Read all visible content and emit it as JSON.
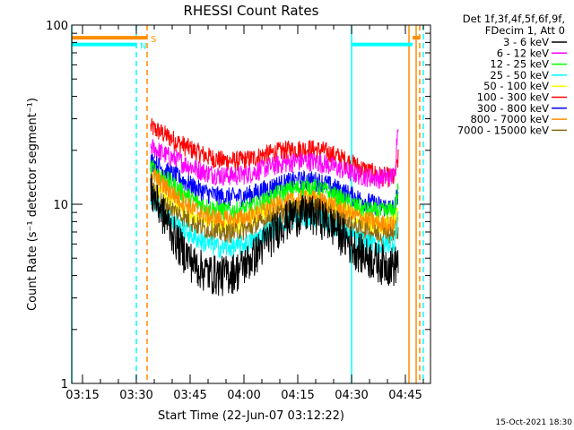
{
  "chart_data": {
    "type": "line",
    "title": "RHESSI Count Rates",
    "xlabel": "Start Time (22-Jun-07 03:12:22)",
    "ylabel": "Count Rate (s⁻¹ detector segment⁻¹)",
    "yscale": "log",
    "ylim": [
      1,
      100
    ],
    "xlim_minutes": [
      "03:12",
      "04:52"
    ],
    "x_ticks": [
      "03:15",
      "03:30",
      "03:45",
      "04:00",
      "04:15",
      "04:30",
      "04:45"
    ],
    "y_ticks": [
      "1",
      "10",
      "100"
    ],
    "legend_placement": "outside-right",
    "legend_header": [
      "Det 1f,3f,4f,5f,6f,9f,",
      "FDecim 1, Att 0"
    ],
    "timestamp": "15-Oct-2021 18:30",
    "x": [
      "03:34",
      "03:38",
      "03:42",
      "03:46",
      "03:50",
      "03:54",
      "03:58",
      "04:02",
      "04:06",
      "04:10",
      "04:14",
      "04:18",
      "04:22",
      "04:26",
      "04:30",
      "04:34",
      "04:38",
      "04:42",
      "04:43"
    ],
    "series": [
      {
        "name": "3 - 6 keV",
        "color": "#000000",
        "values": [
          12,
          8.5,
          6,
          4.7,
          4.2,
          4.1,
          4.3,
          5,
          6.2,
          7.8,
          8.8,
          9,
          8.5,
          7.3,
          6,
          5.2,
          4.8,
          4.6,
          5
        ]
      },
      {
        "name": "6 - 12 keV",
        "color": "#ff00ff",
        "values": [
          21,
          19,
          17.5,
          16,
          15,
          14.5,
          14.5,
          15,
          16,
          16.8,
          17.3,
          17.5,
          17,
          16,
          15,
          14.3,
          14,
          14.5,
          30
        ]
      },
      {
        "name": "12 - 25 keV",
        "color": "#00ff00",
        "values": [
          16,
          14,
          12,
          10.5,
          9.6,
          9.2,
          9.2,
          9.6,
          10.5,
          11.5,
          12.2,
          12.5,
          12,
          11,
          10,
          9.3,
          9,
          9.3,
          12
        ]
      },
      {
        "name": "25 - 50 keV",
        "color": "#00ffff",
        "values": [
          11,
          9,
          7.5,
          6.6,
          6,
          5.7,
          5.8,
          6.2,
          7,
          7.8,
          8.3,
          8.5,
          8.2,
          7.4,
          6.6,
          6.1,
          5.9,
          6.2,
          9
        ]
      },
      {
        "name": "50 - 100 keV",
        "color": "#ffff00",
        "values": [
          13,
          11,
          9.5,
          8.5,
          8,
          7.7,
          7.8,
          8.2,
          9,
          9.8,
          10.3,
          10.5,
          10.2,
          9.4,
          8.6,
          8,
          7.7,
          7.8,
          9
        ]
      },
      {
        "name": "100 - 300 keV",
        "color": "#ff0000",
        "values": [
          27,
          24.5,
          22,
          20,
          18.5,
          17.6,
          17.5,
          18,
          19,
          19.8,
          20.3,
          20.5,
          20,
          18.6,
          17,
          15.5,
          14.5,
          14,
          18
        ]
      },
      {
        "name": "300 - 800 keV",
        "color": "#0000ff",
        "values": [
          17.5,
          15.5,
          14,
          12.5,
          11.5,
          11,
          11,
          11.4,
          12.2,
          13,
          13.5,
          13.7,
          13.3,
          12.2,
          11.2,
          10.4,
          9.8,
          9.5,
          12
        ]
      },
      {
        "name": "800 - 7000 keV",
        "color": "#ff8c00",
        "values": [
          15,
          12.5,
          10.7,
          9.4,
          8.6,
          8.2,
          8.2,
          8.6,
          9.3,
          10,
          10.5,
          10.8,
          10.4,
          9.6,
          8.8,
          8.2,
          7.8,
          7.6,
          8.5
        ]
      },
      {
        "name": "7000 - 15000 keV",
        "color": "#8b6914",
        "values": [
          12.5,
          10,
          8.8,
          7.8,
          7.2,
          6.9,
          7,
          7.4,
          8.1,
          8.9,
          9.4,
          9.6,
          9.2,
          8.4,
          7.6,
          7.1,
          6.8,
          6.7,
          7.5
        ]
      }
    ],
    "flags": [
      {
        "label": "S",
        "color": "#ff8c00",
        "level": 85,
        "segments": [
          [
            "03:12",
            "03:33"
          ],
          [
            "04:47",
            "04:49"
          ]
        ]
      },
      {
        "label": "N",
        "color": "#00ffff",
        "level": 78,
        "segments": [
          [
            "03:12",
            "03:30"
          ],
          [
            "04:30",
            "04:47"
          ]
        ]
      }
    ],
    "markers": [
      {
        "time": "03:12",
        "color": "#00ffff",
        "style": "solid"
      },
      {
        "time": "03:30",
        "color": "#00ffff",
        "style": "dashed"
      },
      {
        "time": "03:33",
        "color": "#ff8c00",
        "style": "dashed"
      },
      {
        "time": "04:30",
        "color": "#00ffff",
        "style": "solid"
      },
      {
        "time": "04:46",
        "color": "#ff8c00",
        "style": "solid"
      },
      {
        "time": "04:48",
        "color": "#ff8c00",
        "style": "solid"
      },
      {
        "time": "04:49",
        "color": "#ff8c00",
        "style": "dashed"
      },
      {
        "time": "04:50",
        "color": "#00ffff",
        "style": "dashed"
      }
    ]
  }
}
